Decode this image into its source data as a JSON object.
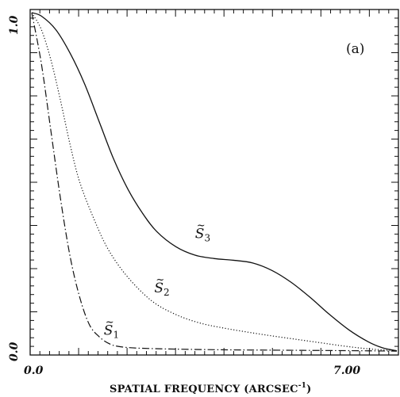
{
  "chart_data": {
    "type": "line",
    "panel_label": "(a)",
    "xlabel": "SPATIAL FREQUENCY (ARCSEC",
    "xlabel_exponent": "-1",
    "xlabel_close": ")",
    "xlim": [
      0.0,
      7.6
    ],
    "ylim": [
      0.0,
      1.0
    ],
    "x_ticks": [
      "0.0",
      "7.00"
    ],
    "y_ticks": [
      "0.0",
      "1.0"
    ],
    "grid": false,
    "series": [
      {
        "name": "S̃1",
        "name_base": "S",
        "name_sub": "1",
        "style": "dashdot",
        "label_at": [
          1.5,
          0.05
        ],
        "points": [
          [
            0.0,
            1.0
          ],
          [
            0.2,
            0.85
          ],
          [
            0.4,
            0.65
          ],
          [
            0.6,
            0.45
          ],
          [
            0.8,
            0.28
          ],
          [
            1.0,
            0.16
          ],
          [
            1.2,
            0.08
          ],
          [
            1.4,
            0.045
          ],
          [
            1.6,
            0.025
          ],
          [
            1.8,
            0.016
          ],
          [
            2.2,
            0.011
          ],
          [
            3.0,
            0.008
          ],
          [
            4.0,
            0.006
          ],
          [
            5.0,
            0.005
          ],
          [
            6.0,
            0.004
          ],
          [
            7.0,
            0.003
          ],
          [
            7.6,
            0.002
          ]
        ]
      },
      {
        "name": "S̃2",
        "name_base": "S",
        "name_sub": "2",
        "style": "dotted",
        "label_at": [
          2.55,
          0.175
        ],
        "points": [
          [
            0.0,
            1.0
          ],
          [
            0.2,
            0.95
          ],
          [
            0.4,
            0.86
          ],
          [
            0.6,
            0.74
          ],
          [
            0.8,
            0.61
          ],
          [
            1.0,
            0.5
          ],
          [
            1.3,
            0.39
          ],
          [
            1.6,
            0.3
          ],
          [
            2.0,
            0.22
          ],
          [
            2.5,
            0.15
          ],
          [
            3.0,
            0.11
          ],
          [
            3.5,
            0.085
          ],
          [
            4.0,
            0.07
          ],
          [
            4.5,
            0.058
          ],
          [
            5.0,
            0.047
          ],
          [
            5.5,
            0.037
          ],
          [
            6.0,
            0.027
          ],
          [
            6.5,
            0.017
          ],
          [
            7.0,
            0.009
          ],
          [
            7.6,
            0.003
          ]
        ]
      },
      {
        "name": "S̃3",
        "name_base": "S",
        "name_sub": "3",
        "style": "solid",
        "label_at": [
          3.4,
          0.335
        ],
        "points": [
          [
            0.0,
            1.0
          ],
          [
            0.2,
            0.99
          ],
          [
            0.5,
            0.95
          ],
          [
            0.8,
            0.88
          ],
          [
            1.1,
            0.79
          ],
          [
            1.4,
            0.68
          ],
          [
            1.7,
            0.57
          ],
          [
            2.0,
            0.48
          ],
          [
            2.3,
            0.41
          ],
          [
            2.6,
            0.355
          ],
          [
            3.0,
            0.31
          ],
          [
            3.4,
            0.285
          ],
          [
            3.8,
            0.275
          ],
          [
            4.2,
            0.27
          ],
          [
            4.6,
            0.262
          ],
          [
            5.0,
            0.24
          ],
          [
            5.4,
            0.205
          ],
          [
            5.8,
            0.16
          ],
          [
            6.2,
            0.11
          ],
          [
            6.6,
            0.065
          ],
          [
            7.0,
            0.03
          ],
          [
            7.3,
            0.012
          ],
          [
            7.6,
            0.003
          ]
        ]
      }
    ]
  }
}
